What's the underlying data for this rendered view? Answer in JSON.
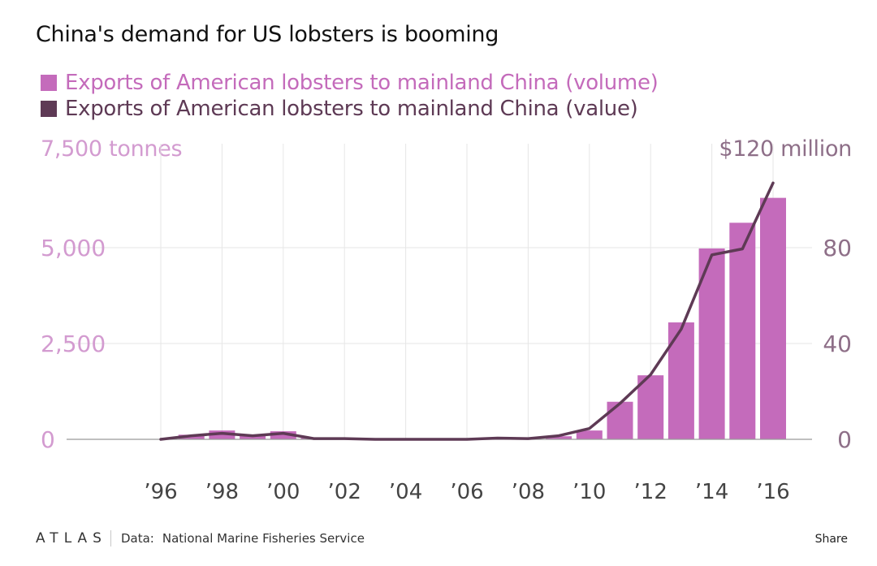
{
  "title": "China's demand for US lobsters is booming",
  "colors": {
    "volume": "#c46bbb",
    "value": "#5e3a55",
    "left_axis": "#d39bd0",
    "right_axis": "#8e6f88",
    "grid": "#e6e6e6",
    "baseline": "#999999",
    "xtick": "#444444"
  },
  "footer": {
    "logo": "ATLAS",
    "source_label": "Data:",
    "source": "National Marine Fisheries Service",
    "share": "Share"
  },
  "chart_data": {
    "type": "bar+line",
    "title": "China's demand for US lobsters is booming",
    "legend": [
      "Exports of American lobsters to mainland China (volume)",
      "Exports of American lobsters to mainland China (value)"
    ],
    "left_axis": {
      "unit_label": "7,500 tonnes",
      "range": [
        0,
        7500
      ],
      "ticks": [
        0,
        2500,
        5000
      ],
      "tick_labels": [
        "0",
        "2,500",
        "5,000"
      ]
    },
    "right_axis": {
      "unit_label": "$120 million",
      "range": [
        0,
        120
      ],
      "ticks": [
        0,
        40,
        80
      ],
      "tick_labels": [
        "0",
        "40",
        "80"
      ]
    },
    "x_range": [
      1995,
      2016.5
    ],
    "x_ticks": [
      1996,
      1998,
      2000,
      2002,
      2004,
      2006,
      2008,
      2010,
      2012,
      2014,
      2016
    ],
    "x_tick_labels": [
      "’96",
      "’98",
      "’00",
      "’02",
      "’04",
      "’06",
      "’08",
      "’10",
      "’12",
      "’14",
      "’16"
    ],
    "bars": {
      "name": "Exports of American lobsters to mainland China (volume)",
      "axis": "left",
      "years": [
        1996,
        1997,
        1998,
        1999,
        2000,
        2001,
        2002,
        2003,
        2004,
        2005,
        2006,
        2007,
        2008,
        2009,
        2010,
        2011,
        2012,
        2013,
        2014,
        2015,
        2016
      ],
      "values": [
        10,
        120,
        230,
        110,
        210,
        40,
        20,
        10,
        10,
        10,
        10,
        30,
        20,
        80,
        230,
        980,
        1670,
        3050,
        4980,
        5650,
        6300
      ]
    },
    "line": {
      "name": "Exports of American lobsters to mainland China (value)",
      "axis": "right",
      "years": [
        1996,
        1997,
        1998,
        1999,
        2000,
        2001,
        2002,
        2003,
        2004,
        2005,
        2006,
        2007,
        2008,
        2009,
        2010,
        2011,
        2012,
        2013,
        2014,
        2015,
        2016
      ],
      "values": [
        0,
        1.5,
        2.5,
        1.5,
        2.5,
        0.3,
        0.3,
        0,
        0,
        0,
        0,
        0.5,
        0.3,
        1.5,
        4.5,
        15,
        27,
        46,
        77,
        79.5,
        107
      ]
    }
  }
}
